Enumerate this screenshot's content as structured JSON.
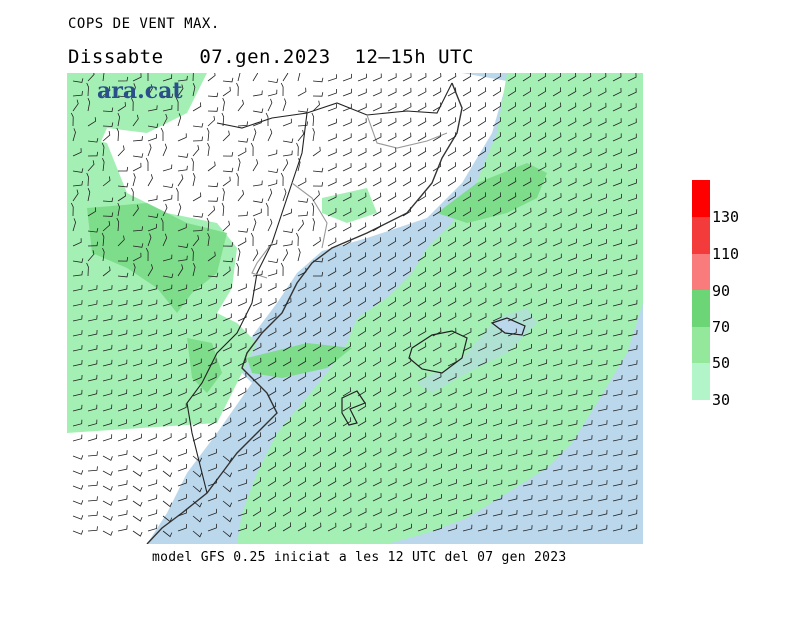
{
  "header": {
    "title": "COPS DE VENT MAX.",
    "subtitle": "Dissabte   07.gen.2023  12–15h UTC"
  },
  "logo": {
    "text": "ara.cat",
    "color": "#2a4f8a"
  },
  "footer": {
    "text": "model GFS 0.25 iniciat a les 12 UTC del 07 gen 2023"
  },
  "legend": {
    "blocks": [
      {
        "label": "30",
        "color": "#b2f5c8"
      },
      {
        "label": "50",
        "color": "#94e89c"
      },
      {
        "label": "70",
        "color": "#6cd676"
      },
      {
        "label": "90",
        "color": "#fa7b7b"
      },
      {
        "label": "110",
        "color": "#f33b3b"
      },
      {
        "label": "130",
        "color": "#ff0000"
      }
    ],
    "labels": [
      "130",
      "110",
      "90",
      "70",
      "50",
      "30"
    ]
  },
  "colors": {
    "sea": "#bad7ec",
    "land": "#ffffff",
    "gust_30_50": "#a4f0b4",
    "gust_50_70": "#7edd8a",
    "gust_70_90": "#6cc870",
    "coast": "#333333",
    "border": "#999999",
    "barb": "#222222"
  }
}
